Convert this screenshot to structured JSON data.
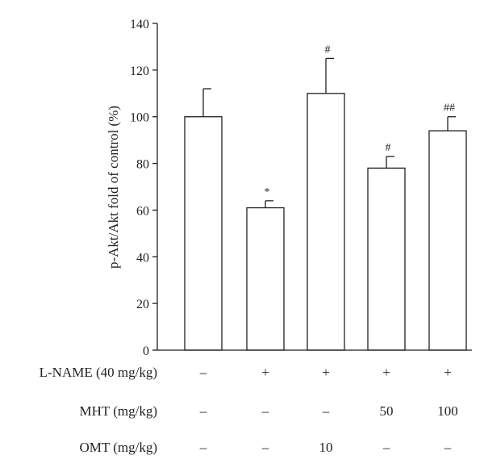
{
  "chart_data": {
    "type": "bar",
    "ylabel": "p-Akt/Akt fold of control (%)",
    "ylim": [
      0,
      140
    ],
    "yticks": [
      0,
      20,
      40,
      60,
      80,
      100,
      120,
      140
    ],
    "grid": false,
    "colors": {
      "bar_fill": "#ffffff",
      "stroke": "#231f20",
      "text": "#231f20"
    },
    "bars": [
      {
        "value": 100,
        "error": 12,
        "annotation": ""
      },
      {
        "value": 61,
        "error": 3,
        "annotation": "*"
      },
      {
        "value": 110,
        "error": 15,
        "annotation": "#"
      },
      {
        "value": 78,
        "error": 5,
        "annotation": "#"
      },
      {
        "value": 94,
        "error": 6,
        "annotation": "##"
      }
    ],
    "treatments": [
      {
        "label": "L-NAME (40 mg/kg)",
        "values": [
          "–",
          "+",
          "+",
          "+",
          "+"
        ]
      },
      {
        "label": "MHT (mg/kg)",
        "values": [
          "–",
          "–",
          "–",
          "50",
          "100"
        ]
      },
      {
        "label": "OMT (mg/kg)",
        "values": [
          "–",
          "–",
          "10",
          "–",
          "–"
        ]
      }
    ]
  }
}
